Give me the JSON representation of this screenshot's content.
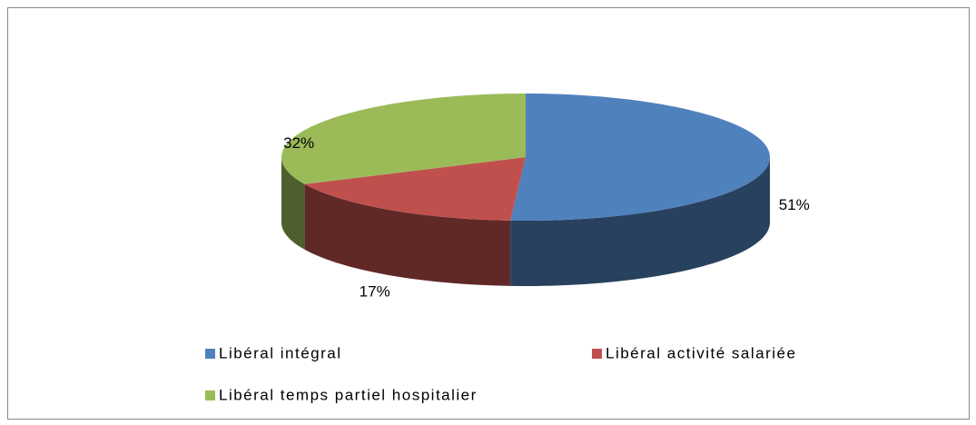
{
  "chart_data": {
    "type": "pie3d",
    "categories": [
      "Libéral intégral",
      "Libéral activité salariée",
      "Libéral temps partiel hospitalier"
    ],
    "values": [
      51,
      17,
      32
    ],
    "value_labels": [
      "51%",
      "17%",
      "32%"
    ],
    "colors": [
      "#4f81bd",
      "#c0504d",
      "#9bbb59"
    ]
  }
}
